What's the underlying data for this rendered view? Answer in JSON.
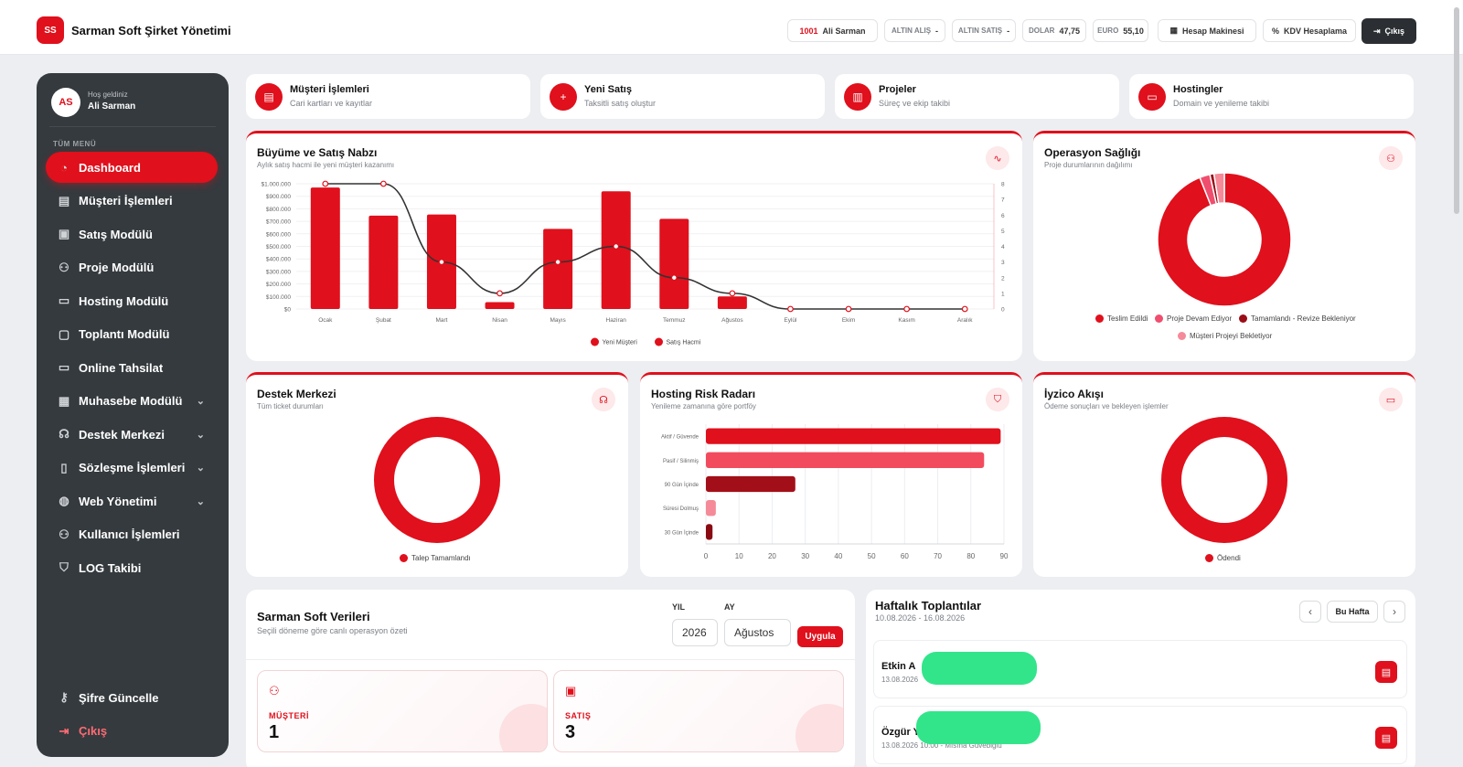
{
  "brand": {
    "initials": "SS",
    "title": "Sarman Soft Şirket Yönetimi"
  },
  "topbar": {
    "user_id": "1001",
    "user_name": "Ali Sarman",
    "gold_buy": "ALTIN ALIŞ",
    "gold_buy_value": "-",
    "gold_sell": "ALTIN SATIŞ",
    "gold_sell_value": "-",
    "dollar_label": "DOLAR",
    "dollar_value": "47,75",
    "euro_label": "EURO",
    "euro_value": "55,10",
    "calculator": "Hesap Makinesi",
    "kdv": "KDV Hesaplama",
    "logout": "Çıkış"
  },
  "sidebar": {
    "avatar": "AS",
    "welcome": "Hoş geldiniz",
    "user": "Ali Sarman",
    "menu_title": "TÜM MENÜ",
    "items": [
      {
        "label": "Dashboard",
        "icon": "dashboard-icon",
        "active": true
      },
      {
        "label": "Müşteri İşlemleri",
        "icon": "id-card-icon"
      },
      {
        "label": "Satış Modülü",
        "icon": "cash-icon"
      },
      {
        "label": "Proje Modülü",
        "icon": "sitemap-icon"
      },
      {
        "label": "Hosting Modülü",
        "icon": "server-icon"
      },
      {
        "label": "Toplantı Modülü",
        "icon": "calendar-icon"
      },
      {
        "label": "Online Tahsilat",
        "icon": "credit-card-icon"
      },
      {
        "label": "Muhasebe Modülü",
        "icon": "calculator-icon",
        "chevron": true
      },
      {
        "label": "Destek Merkezi",
        "icon": "headset-icon",
        "chevron": true
      },
      {
        "label": "Sözleşme İşlemleri",
        "icon": "file-icon",
        "chevron": true
      },
      {
        "label": "Web Yönetimi",
        "icon": "globe-icon",
        "chevron": true
      },
      {
        "label": "Kullanıcı İşlemleri",
        "icon": "users-icon"
      },
      {
        "label": "LOG Takibi",
        "icon": "shield-icon"
      }
    ],
    "bottom": [
      {
        "label": "Şifre Güncelle",
        "icon": "key-icon"
      },
      {
        "label": "Çıkış",
        "icon": "logout-icon"
      }
    ]
  },
  "quick_cards": [
    {
      "title": "Müşteri İşlemleri",
      "subtitle": "Cari kartları ve kayıtlar",
      "icon": "id-card-icon"
    },
    {
      "title": "Yeni Satış",
      "subtitle": "Taksitli satış oluştur",
      "icon": "plus-icon"
    },
    {
      "title": "Projeler",
      "subtitle": "Süreç ve ekip takibi",
      "icon": "kanban-icon"
    },
    {
      "title": "Hostingler",
      "subtitle": "Domain ve yenileme takibi",
      "icon": "server-icon"
    }
  ],
  "growth": {
    "title": "Büyüme ve Satış Nabzı",
    "subtitle": "Aylık satış hacmi ile yeni müşteri kazanımı",
    "chart_data": {
      "type": "bar",
      "categories": [
        "Ocak",
        "Şubat",
        "Mart",
        "Nisan",
        "Mayıs",
        "Haziran",
        "Temmuz",
        "Ağustos",
        "Eylül",
        "Ekim",
        "Kasım",
        "Aralık"
      ],
      "series": [
        {
          "name": "Satış Hacmi",
          "type": "bar",
          "axis": "left",
          "color": "#e0101c",
          "values": [
            970000,
            745000,
            755000,
            55000,
            640000,
            940000,
            720000,
            100000,
            0,
            0,
            0,
            0
          ]
        },
        {
          "name": "Yeni Müşteri",
          "type": "line",
          "axis": "right",
          "color": "#333333",
          "values": [
            8,
            8,
            3,
            1,
            3,
            4,
            2,
            1,
            0,
            0,
            0,
            0
          ]
        }
      ],
      "ylim": [
        0,
        1000000
      ],
      "y_ticks": [
        "$0",
        "$100.000",
        "$200.000",
        "$300.000",
        "$400.000",
        "$500.000",
        "$600.000",
        "$700.000",
        "$800.000",
        "$900.000",
        "$1.000.000"
      ],
      "y2lim": [
        0,
        8
      ],
      "y2_ticks": [
        "0",
        "1",
        "2",
        "3",
        "4",
        "5",
        "6",
        "7",
        "8"
      ],
      "legend": "bottom"
    }
  },
  "operations": {
    "title": "Operasyon Sağlığı",
    "subtitle": "Proje durumlarının dağılımı",
    "chart_data": {
      "type": "pie",
      "labels": [
        "Teslim Edildi",
        "Proje Devam Ediyor",
        "Tamamlandı - Revize Bekleniyor",
        "Müşteri Projeyi Bekletiyor"
      ],
      "values": [
        94,
        2.5,
        1,
        2.5
      ],
      "colors": [
        "#e0101c",
        "#f04e6e",
        "#9a0e17",
        "#f58a98"
      ],
      "legend": "bottom"
    }
  },
  "support": {
    "title": "Destek Merkezi",
    "subtitle": "Tüm ticket durumları",
    "chart_data": {
      "type": "pie",
      "labels": [
        "Talep Tamamlandı"
      ],
      "values": [
        100
      ],
      "colors": [
        "#e0101c"
      ],
      "legend": "bottom"
    }
  },
  "hosting_risk": {
    "title": "Hosting Risk Radarı",
    "subtitle": "Yenileme zamanına göre portföy",
    "chart_data": {
      "type": "bar",
      "orientation": "horizontal",
      "categories": [
        "Aktif / Güvende",
        "Pasif / Silinmiş",
        "90 Gün İçinde",
        "Süresi Dolmuş",
        "30 Gün İçinde"
      ],
      "values": [
        89,
        84,
        27,
        3,
        2
      ],
      "colors": [
        "#e0101c",
        "#f24b5e",
        "#a30f18",
        "#f58a98",
        "#8a0a12"
      ],
      "xlim": [
        0,
        90
      ],
      "x_ticks": [
        "0",
        "10",
        "20",
        "30",
        "40",
        "50",
        "60",
        "70",
        "80",
        "90"
      ]
    }
  },
  "iyzico": {
    "title": "İyzico Akışı",
    "subtitle": "Ödeme sonuçları ve bekleyen işlemler",
    "chart_data": {
      "type": "pie",
      "labels": [
        "Ödendi"
      ],
      "values": [
        100
      ],
      "colors": [
        "#e0101c"
      ],
      "legend": "bottom"
    }
  },
  "data_panel": {
    "title": "Sarman Soft Verileri",
    "subtitle": "Seçili döneme göre canlı operasyon özeti",
    "year_label": "YIL",
    "year_value": "2026",
    "month_label": "AY",
    "month_value": "Ağustos",
    "apply": "Uygula",
    "stats": [
      {
        "label": "MÜŞTERİ",
        "value": "1",
        "icon": "users-icon"
      },
      {
        "label": "SATIŞ",
        "value": "3",
        "icon": "cash-icon"
      }
    ]
  },
  "meetings": {
    "title": "Haftalık Toplantılar",
    "range": "10.08.2026 - 16.08.2026",
    "this_week": "Bu Hafta",
    "items": [
      {
        "name": "Etkin A",
        "date": "13.08.2026"
      },
      {
        "name": "Özgür Y",
        "date": "13.08.2026 10:00 - Mısına Güvebiglu"
      }
    ]
  },
  "colors": {
    "accent": "#e0101c",
    "sidebar": "#353a3e",
    "bg": "#eceef1"
  }
}
